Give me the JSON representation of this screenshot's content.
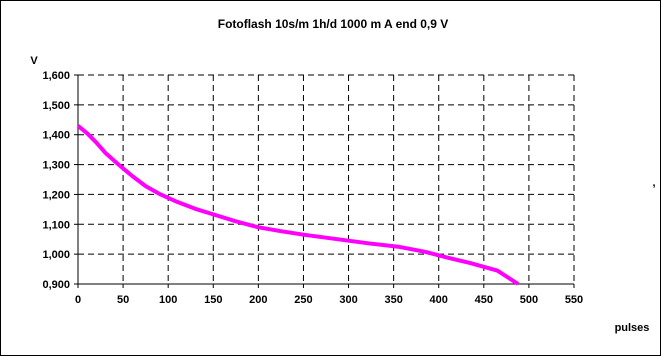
{
  "chart_data": {
    "type": "line",
    "title": "Fotoflash 10s/m 1h/d 1000 m A end 0,9 V",
    "ylabel": "V",
    "xlabel": "pulses",
    "xlim": [
      0,
      550
    ],
    "ylim": [
      0.9,
      1.6
    ],
    "x_ticks": [
      "0",
      "50",
      "100",
      "150",
      "200",
      "250",
      "300",
      "350",
      "400",
      "450",
      "500",
      "550"
    ],
    "y_ticks": [
      "0,900",
      "1,000",
      "1,100",
      "1,200",
      "1,300",
      "1,400",
      "1,500",
      "1,600"
    ],
    "grid": true,
    "line_color": "#ff00ff",
    "series": [
      {
        "x": [
          0,
          10,
          20,
          30,
          45,
          60,
          75,
          90,
          110,
          130,
          150,
          175,
          200,
          225,
          250,
          275,
          300,
          325,
          355,
          385,
          410,
          435,
          465,
          488
        ],
        "y": [
          1.43,
          1.405,
          1.375,
          1.34,
          1.3,
          1.262,
          1.228,
          1.202,
          1.175,
          1.152,
          1.133,
          1.11,
          1.09,
          1.077,
          1.065,
          1.055,
          1.045,
          1.035,
          1.025,
          1.008,
          0.988,
          0.97,
          0.945,
          0.9
        ]
      }
    ]
  },
  "marks": {
    "stray_mark": ","
  }
}
